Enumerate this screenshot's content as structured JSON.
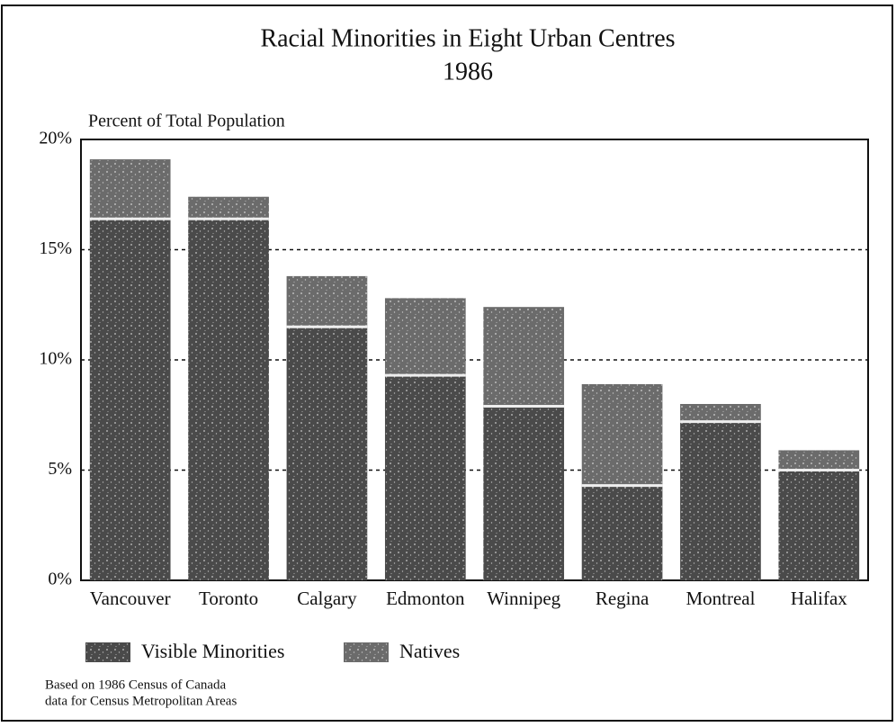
{
  "chart_data": {
    "type": "stacked_bar",
    "title": "Racial Minorities in Eight Urban Centres",
    "subtitle": "1986",
    "y_label": "Percent of Total Population",
    "categories": [
      "Vancouver",
      "Toronto",
      "Calgary",
      "Edmonton",
      "Winnipeg",
      "Regina",
      "Montreal",
      "Halifax"
    ],
    "series": [
      {
        "name": "Visible Minorities",
        "color": "#4a4a4a",
        "values": [
          16.4,
          16.4,
          11.5,
          9.3,
          7.9,
          4.3,
          7.2,
          5.0
        ]
      },
      {
        "name": "Natives",
        "color": "#6b6b6b",
        "values": [
          2.7,
          1.0,
          2.3,
          3.5,
          4.5,
          4.6,
          0.8,
          0.9
        ]
      }
    ],
    "ylim": [
      0,
      20
    ],
    "yticks": [
      {
        "value": 0,
        "label": "0%"
      },
      {
        "value": 5,
        "label": "5%"
      },
      {
        "value": 10,
        "label": "10%"
      },
      {
        "value": 15,
        "label": "15%"
      },
      {
        "value": 20,
        "label": "20%"
      }
    ],
    "grid": true,
    "legend": "bottom",
    "footnote": [
      "Based on 1986 Census of Canada",
      "data for Census Metropolitan Areas"
    ]
  }
}
